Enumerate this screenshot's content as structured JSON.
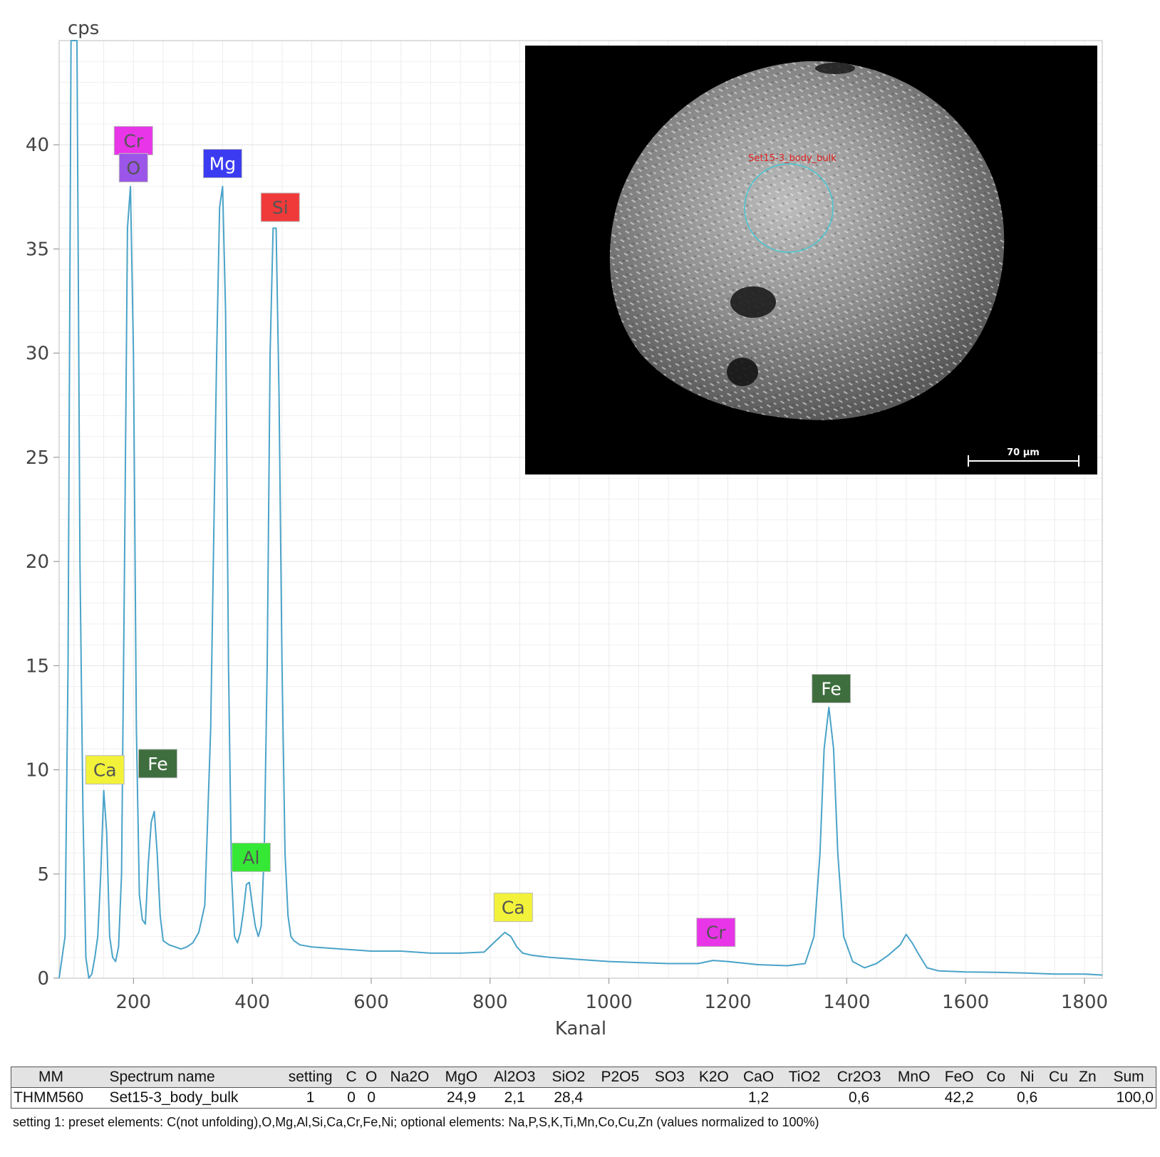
{
  "chart_data": {
    "type": "line",
    "title": "",
    "xlabel": "Kanal",
    "ylabel": "cps",
    "xlim": [
      75,
      1830
    ],
    "ylim": [
      0,
      45
    ],
    "x_ticks": [
      200,
      400,
      600,
      800,
      1000,
      1200,
      1400,
      1600,
      1800
    ],
    "y_ticks": [
      0,
      5,
      10,
      15,
      20,
      25,
      30,
      35,
      40
    ],
    "grid": true,
    "series": [
      {
        "color": "#4aa3c8",
        "x": [
          75,
          85,
          90,
          95,
          100,
          105,
          110,
          115,
          120,
          125,
          130,
          135,
          140,
          145,
          150,
          155,
          160,
          165,
          170,
          175,
          180,
          185,
          190,
          195,
          200,
          205,
          210,
          215,
          220,
          225,
          230,
          235,
          240,
          245,
          250,
          260,
          270,
          280,
          290,
          300,
          310,
          320,
          330,
          340,
          345,
          350,
          355,
          360,
          365,
          370,
          375,
          380,
          385,
          390,
          395,
          400,
          405,
          410,
          415,
          420,
          425,
          430,
          435,
          440,
          445,
          450,
          455,
          460,
          465,
          470,
          475,
          480,
          500,
          550,
          600,
          650,
          700,
          750,
          790,
          810,
          825,
          835,
          845,
          855,
          870,
          900,
          950,
          1000,
          1050,
          1100,
          1150,
          1175,
          1200,
          1250,
          1300,
          1330,
          1345,
          1355,
          1362,
          1370,
          1378,
          1385,
          1395,
          1410,
          1430,
          1450,
          1470,
          1490,
          1500,
          1510,
          1520,
          1535,
          1555,
          1600,
          1650,
          1700,
          1750,
          1800,
          1830
        ],
        "values": [
          0,
          2,
          15,
          45,
          45,
          45,
          20,
          8,
          1,
          0,
          0.2,
          1,
          2,
          5,
          9,
          7,
          2,
          1,
          0.8,
          1.5,
          5,
          20,
          36,
          38,
          30,
          12,
          4,
          2.8,
          2.6,
          5.5,
          7.5,
          8,
          6,
          3,
          1.8,
          1.6,
          1.5,
          1.4,
          1.5,
          1.7,
          2.2,
          3.5,
          12,
          30,
          37,
          38,
          32,
          15,
          5,
          2,
          1.7,
          2.2,
          3.2,
          4.5,
          4.6,
          3.5,
          2.5,
          2,
          2.5,
          6,
          15,
          30,
          36,
          36,
          28,
          15,
          6,
          3,
          2,
          1.8,
          1.7,
          1.6,
          1.5,
          1.4,
          1.3,
          1.3,
          1.2,
          1.2,
          1.25,
          1.8,
          2.2,
          2,
          1.5,
          1.2,
          1.1,
          1,
          0.9,
          0.8,
          0.75,
          0.7,
          0.7,
          0.85,
          0.8,
          0.65,
          0.6,
          0.7,
          2,
          6,
          11,
          13,
          11,
          6,
          2,
          0.8,
          0.5,
          0.7,
          1.1,
          1.6,
          2.1,
          1.7,
          1.2,
          0.5,
          0.35,
          0.3,
          0.28,
          0.25,
          0.2,
          0.2,
          0.15
        ]
      }
    ],
    "peak_labels": [
      {
        "text": "Cr",
        "x": 200,
        "y": 40.2,
        "bg": "#e835e8"
      },
      {
        "text": "O",
        "x": 200,
        "y": 38.9,
        "bg": "#9b55e8"
      },
      {
        "text": "Mg",
        "x": 350,
        "y": 39.1,
        "bg": "#3b3bf2"
      },
      {
        "text": "Si",
        "x": 447,
        "y": 37.0,
        "bg": "#f03a3a"
      },
      {
        "text": "Ca",
        "x": 152,
        "y": 10.0,
        "bg": "#f2f23a"
      },
      {
        "text": "Fe",
        "x": 241,
        "y": 10.3,
        "bg": "#3e6e3e"
      },
      {
        "text": "Al",
        "x": 398,
        "y": 5.8,
        "bg": "#35e835"
      },
      {
        "text": "Ca",
        "x": 839,
        "y": 3.4,
        "bg": "#f2f23a"
      },
      {
        "text": "Cr",
        "x": 1180,
        "y": 2.2,
        "bg": "#e835e8"
      },
      {
        "text": "Fe",
        "x": 1374,
        "y": 13.9,
        "bg": "#3e6e3e"
      }
    ]
  },
  "inset": {
    "region_label": "Set15-3_body_bulk",
    "scale_bar_label": "70 µm"
  },
  "table": {
    "headers": [
      "MM",
      "Spectrum name",
      "setting",
      "C",
      "O",
      "Na2O",
      "MgO",
      "Al2O3",
      "SiO2",
      "P2O5",
      "SO3",
      "K2O",
      "CaO",
      "TiO2",
      "Cr2O3",
      "MnO",
      "FeO",
      "Co",
      "Ni",
      "Cu",
      "Zn",
      "Sum"
    ],
    "row": [
      "THMM560",
      "Set15-3_body_bulk",
      "1",
      "0",
      "0",
      "",
      "24,9",
      "2,1",
      "28,4",
      "",
      "",
      "",
      "1,2",
      "",
      "0,6",
      "",
      "42,2",
      "",
      "0,6",
      "",
      "",
      "100,0"
    ]
  },
  "footnote": "setting 1: preset elements: C(not unfolding),O,Mg,Al,Si,Ca,Cr,Fe,Ni; optional elements: Na,P,S,K,Ti,Mn,Co,Cu,Zn (values normalized to 100%)"
}
